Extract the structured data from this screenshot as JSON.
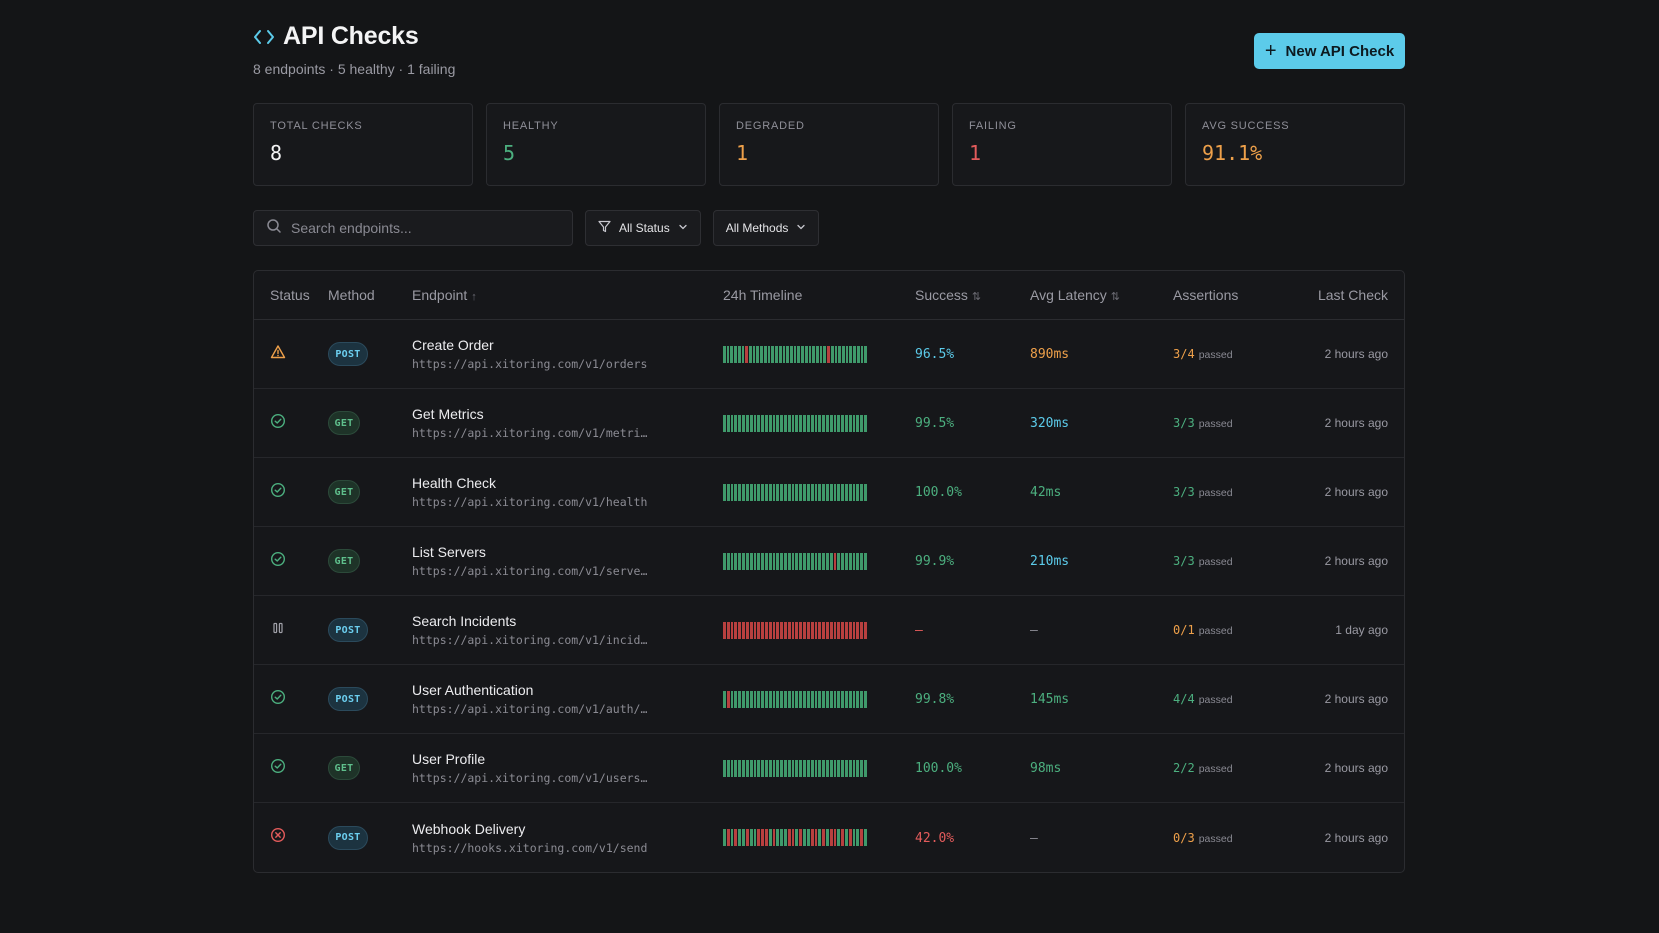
{
  "header": {
    "title": "API Checks",
    "subtitle": "8 endpoints · 5 healthy · 1 failing",
    "new_button_label": "New API Check"
  },
  "stats": [
    {
      "label": "TOTAL CHECKS",
      "value": "8",
      "color": "#f4f4f5"
    },
    {
      "label": "HEALTHY",
      "value": "5",
      "color": "#4caf7f"
    },
    {
      "label": "DEGRADED",
      "value": "1",
      "color": "#eea04a"
    },
    {
      "label": "FAILING",
      "value": "1",
      "color": "#e35b5b"
    },
    {
      "label": "AVG SUCCESS",
      "value": "91.1%",
      "color": "#eea04a"
    }
  ],
  "filters": {
    "search_placeholder": "Search endpoints...",
    "status_label": "All Status",
    "methods_label": "All Methods"
  },
  "table": {
    "columns": [
      "Status",
      "Method",
      "Endpoint",
      "24h Timeline",
      "Success",
      "Avg Latency",
      "Assertions",
      "Last Check"
    ],
    "endpoint_sort": "↑",
    "sortable_icon": "⇅",
    "rows": [
      {
        "status": "warning",
        "method": "POST",
        "name": "Create Order",
        "url": "https://api.xitoring.com/v1/orders",
        "timeline": "ggggggrgggggggggggggggggggggrgggggggggg",
        "success": "96.5%",
        "success_color": "#5ccbea",
        "latency": "890ms",
        "latency_color": "#eea04a",
        "assertions": "3/4",
        "assert_color": "#eea04a",
        "passed": "passed",
        "last": "2 hours ago"
      },
      {
        "status": "ok",
        "method": "GET",
        "name": "Get Metrics",
        "url": "https://api.xitoring.com/v1/metri…",
        "timeline": "gggggggggggggggggggggggggggggggggggggg",
        "success": "99.5%",
        "success_color": "#4caf7f",
        "latency": "320ms",
        "latency_color": "#5ccbea",
        "assertions": "3/3",
        "assert_color": "#4caf7f",
        "passed": "passed",
        "last": "2 hours ago"
      },
      {
        "status": "ok",
        "method": "GET",
        "name": "Health Check",
        "url": "https://api.xitoring.com/v1/health",
        "timeline": "gggggggggggggggggggggggggggggggggggggg",
        "success": "100.0%",
        "success_color": "#4caf7f",
        "latency": "42ms",
        "latency_color": "#4caf7f",
        "assertions": "3/3",
        "assert_color": "#4caf7f",
        "passed": "passed",
        "last": "2 hours ago"
      },
      {
        "status": "ok",
        "method": "GET",
        "name": "List Servers",
        "url": "https://api.xitoring.com/v1/serve…",
        "timeline": "gggggggggggggggggggggggggggggrgggggggg",
        "success": "99.9%",
        "success_color": "#4caf7f",
        "latency": "210ms",
        "latency_color": "#5ccbea",
        "assertions": "3/3",
        "assert_color": "#4caf7f",
        "passed": "passed",
        "last": "2 hours ago"
      },
      {
        "status": "paused",
        "method": "POST",
        "name": "Search Incidents",
        "url": "https://api.xitoring.com/v1/incid…",
        "timeline": "rrrrrrrrrrrrrrrrrrrrrrrrrrrrrrrrrrrrrr",
        "success": "—",
        "success_color": "#e35b5b",
        "latency": "—",
        "latency_color": "#8a8a93",
        "assertions": "0/1",
        "assert_color": "#eea04a",
        "passed": "passed",
        "last": "1 day ago"
      },
      {
        "status": "ok",
        "method": "POST",
        "name": "User Authentication",
        "url": "https://api.xitoring.com/v1/auth/…",
        "timeline": "grgggggggggggggggggggggggggggggggggggg",
        "success": "99.8%",
        "success_color": "#4caf7f",
        "latency": "145ms",
        "latency_color": "#4caf7f",
        "assertions": "4/4",
        "assert_color": "#4caf7f",
        "passed": "passed",
        "last": "2 hours ago"
      },
      {
        "status": "ok",
        "method": "GET",
        "name": "User Profile",
        "url": "https://api.xitoring.com/v1/users…",
        "timeline": "gggggggggggggggggggggggggggggggggggggg",
        "success": "100.0%",
        "success_color": "#4caf7f",
        "latency": "98ms",
        "latency_color": "#4caf7f",
        "assertions": "2/2",
        "assert_color": "#4caf7f",
        "passed": "passed",
        "last": "2 hours ago"
      },
      {
        "status": "fail",
        "method": "POST",
        "name": "Webhook Delivery",
        "url": "https://hooks.xitoring.com/v1/send",
        "timeline": "grgrggrggrrrgrgggrrgrggrrgrgrrgrgrggrg",
        "success": "42.0%",
        "success_color": "#e35b5b",
        "latency": "—",
        "latency_color": "#8a8a93",
        "assertions": "0/3",
        "assert_color": "#eea04a",
        "passed": "passed",
        "last": "2 hours ago"
      }
    ]
  },
  "colors": {
    "accent": "#5ccbea",
    "healthy": "#4caf7f",
    "degraded": "#eea04a",
    "failing": "#e35b5b",
    "bar_green": "#3f9a6b",
    "bar_red": "#b8403f"
  },
  "icons": {
    "title": "code-brackets-icon",
    "warning": "warning-triangle-icon",
    "ok": "check-circle-icon",
    "paused": "pause-icon",
    "fail": "x-circle-icon"
  }
}
